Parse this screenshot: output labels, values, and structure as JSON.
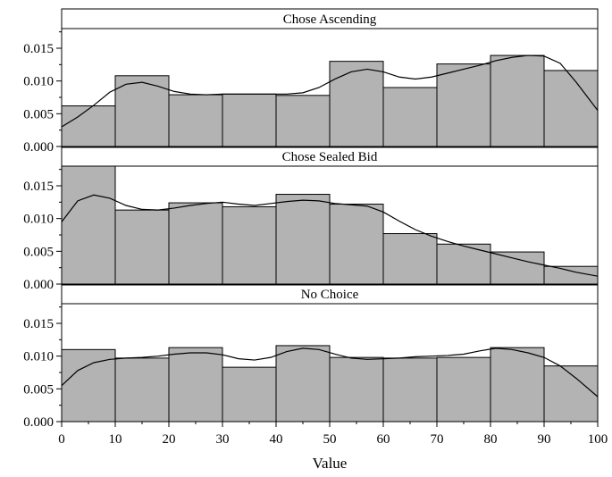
{
  "chart_data": {
    "type": "histogram",
    "xlabel": "Value",
    "x_ticks": [
      "0",
      "10",
      "20",
      "30",
      "40",
      "50",
      "60",
      "70",
      "80",
      "90",
      "100"
    ],
    "y_ticks": [
      "0.000",
      "0.005",
      "0.010",
      "0.015"
    ],
    "xlim": [
      0,
      100
    ],
    "ylim": [
      0,
      0.018
    ],
    "bin_edges": [
      0,
      10,
      20,
      30,
      40,
      50,
      60,
      70,
      80,
      90,
      100
    ],
    "grid": false,
    "colors": {
      "bar_fill": "#b3b3b3",
      "bar_stroke": "#000000",
      "curve": "#000000"
    },
    "panels": [
      {
        "title": "Chose Ascending",
        "values": [
          0.0062,
          0.0108,
          0.0079,
          0.008,
          0.0078,
          0.013,
          0.009,
          0.0126,
          0.0139,
          0.0116
        ],
        "density_x": [
          0,
          3,
          6,
          9,
          12,
          15,
          18,
          21,
          24,
          27,
          30,
          33,
          36,
          39,
          42,
          45,
          48,
          51,
          54,
          57,
          60,
          63,
          66,
          69,
          72,
          75,
          78,
          81,
          84,
          87,
          90,
          93,
          96,
          100
        ],
        "density_y": [
          0.003,
          0.0045,
          0.0063,
          0.0083,
          0.0095,
          0.0098,
          0.0092,
          0.0084,
          0.008,
          0.0079,
          0.008,
          0.008,
          0.008,
          0.008,
          0.008,
          0.0082,
          0.009,
          0.0103,
          0.0114,
          0.0118,
          0.0114,
          0.0106,
          0.0103,
          0.0106,
          0.0112,
          0.0118,
          0.0124,
          0.0131,
          0.0136,
          0.0139,
          0.0138,
          0.0127,
          0.0098,
          0.0055
        ]
      },
      {
        "title": "Chose Sealed Bid",
        "values": [
          0.018,
          0.0113,
          0.0124,
          0.0118,
          0.0137,
          0.0122,
          0.0077,
          0.0061,
          0.0049,
          0.0027
        ],
        "density_x": [
          0,
          3,
          6,
          9,
          12,
          15,
          18,
          21,
          24,
          27,
          30,
          33,
          36,
          39,
          42,
          45,
          48,
          51,
          54,
          57,
          60,
          63,
          66,
          69,
          72,
          75,
          78,
          81,
          84,
          87,
          90,
          93,
          96,
          100
        ],
        "density_y": [
          0.0095,
          0.0127,
          0.0136,
          0.0131,
          0.012,
          0.0114,
          0.0113,
          0.0116,
          0.012,
          0.0123,
          0.0125,
          0.0122,
          0.012,
          0.0123,
          0.0126,
          0.0128,
          0.0127,
          0.0123,
          0.0121,
          0.0119,
          0.011,
          0.0096,
          0.0083,
          0.0073,
          0.0065,
          0.0058,
          0.0052,
          0.0046,
          0.004,
          0.0034,
          0.0029,
          0.0024,
          0.0018,
          0.0012
        ]
      },
      {
        "title": "No Choice",
        "values": [
          0.011,
          0.0097,
          0.0113,
          0.0083,
          0.0116,
          0.0098,
          0.0097,
          0.0098,
          0.0113,
          0.0085
        ],
        "density_x": [
          0,
          3,
          6,
          9,
          12,
          15,
          18,
          21,
          24,
          27,
          30,
          33,
          36,
          39,
          42,
          45,
          48,
          51,
          54,
          57,
          60,
          63,
          66,
          69,
          72,
          75,
          78,
          81,
          84,
          87,
          90,
          93,
          96,
          100
        ],
        "density_y": [
          0.0055,
          0.0078,
          0.009,
          0.0095,
          0.0097,
          0.0098,
          0.01,
          0.0103,
          0.0105,
          0.0105,
          0.0102,
          0.0096,
          0.0094,
          0.0098,
          0.0107,
          0.0112,
          0.011,
          0.0103,
          0.0097,
          0.0095,
          0.0096,
          0.0097,
          0.0099,
          0.01,
          0.0101,
          0.0103,
          0.0108,
          0.0112,
          0.011,
          0.0105,
          0.0098,
          0.0085,
          0.0066,
          0.0038
        ]
      }
    ]
  }
}
